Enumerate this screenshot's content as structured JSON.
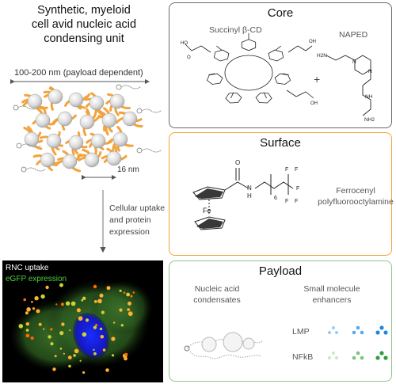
{
  "left": {
    "title_lines": [
      "Synthetic, myeloid",
      "cell avid nucleic acid",
      "condensing unit"
    ],
    "size_label": "100-200 nm (payload dependent)",
    "scale_label": "16 nm",
    "uptake_lines": [
      "Cellular uptake",
      "and protein",
      "expression"
    ],
    "micrograph": {
      "label_uptake": "RNC uptake",
      "label_expression": "eGFP expression"
    }
  },
  "core": {
    "title": "Core",
    "molecule1": "Succinyl β-CD",
    "plus": "+",
    "molecule2": "NAPED",
    "chem": {
      "ho": "HO",
      "oh": "OH",
      "o": "O",
      "h2n": "H2N",
      "nh2": "NH2",
      "n": "N",
      "nh": "NH"
    }
  },
  "surface": {
    "title": "Surface",
    "molecule_lines": [
      "Ferrocenyl",
      "polyfluorooctylamine"
    ],
    "chem": {
      "o": "O",
      "n": "N",
      "h": "H",
      "fe": "Fe",
      "f": "F",
      "sub6": "6"
    }
  },
  "payload": {
    "title": "Payload",
    "left_lines": [
      "Nucleic acid",
      "condensates"
    ],
    "right_lines": [
      "Small molecule",
      "enhancers"
    ],
    "rows": [
      "LMP",
      "NFkB"
    ]
  },
  "colors": {
    "orange": "#f3a33a",
    "green_border": "#8fc58b",
    "blue_dots": "#1e88e5",
    "green_dots": "#2e9e3e"
  }
}
